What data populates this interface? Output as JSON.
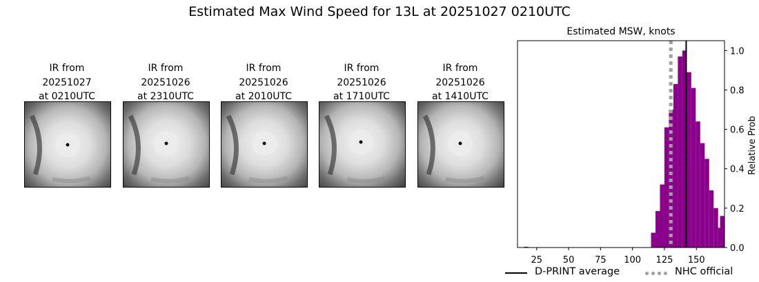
{
  "figure": {
    "title": "Estimated Max Wind Speed for 13L at 20251027 0210UTC"
  },
  "ir_panels": [
    {
      "line1": "IR from",
      "line2": "20251027",
      "line3": "at 0210UTC"
    },
    {
      "line1": "IR from",
      "line2": "20251026",
      "line3": "at 2310UTC"
    },
    {
      "line1": "IR from",
      "line2": "20251026",
      "line3": "at 2010UTC"
    },
    {
      "line1": "IR from",
      "line2": "20251026",
      "line3": "at 1710UTC"
    },
    {
      "line1": "IR from",
      "line2": "20251026",
      "line3": "at 1410UTC"
    }
  ],
  "legend": {
    "dprint_label": "D-PRINT average",
    "nhc_label": "NHC official"
  },
  "colors": {
    "bars": "#8b008b",
    "dprint_line": "#000000",
    "nhc_line": "#a0a0a0"
  },
  "chart_data": {
    "type": "bar",
    "title": "Estimated MSW, knots",
    "xlabel": "",
    "ylabel": "Relative Prob",
    "xlim": [
      10,
      172
    ],
    "ylim": [
      0,
      1.05
    ],
    "xticks": [
      25,
      50,
      75,
      100,
      125,
      150
    ],
    "yticks": [
      0.0,
      0.2,
      0.4,
      0.6,
      0.8,
      1.0
    ],
    "ytick_labels": [
      "0.0",
      "0.2",
      "0.4",
      "0.6",
      "0.8",
      "1.0"
    ],
    "y_axis_side": "right",
    "bin_width": 3.5,
    "bins": [
      {
        "left": 15.0,
        "value": 0.004
      },
      {
        "left": 114.5,
        "value": 0.075
      },
      {
        "left": 118.0,
        "value": 0.185
      },
      {
        "left": 121.5,
        "value": 0.32
      },
      {
        "left": 125.0,
        "value": 0.61
      },
      {
        "left": 128.5,
        "value": 0.7
      },
      {
        "left": 132.0,
        "value": 0.83
      },
      {
        "left": 135.5,
        "value": 0.97
      },
      {
        "left": 139.0,
        "value": 1.0
      },
      {
        "left": 142.5,
        "value": 0.89
      },
      {
        "left": 146.0,
        "value": 0.81
      },
      {
        "left": 149.5,
        "value": 0.64
      },
      {
        "left": 153.0,
        "value": 0.53
      },
      {
        "left": 156.5,
        "value": 0.45
      },
      {
        "left": 160.0,
        "value": 0.29
      },
      {
        "left": 163.5,
        "value": 0.2
      },
      {
        "left": 167.0,
        "value": 0.1
      },
      {
        "left": 168.5,
        "value": 0.16
      }
    ],
    "dprint_average": 142.0,
    "nhc_official": 130.0
  }
}
